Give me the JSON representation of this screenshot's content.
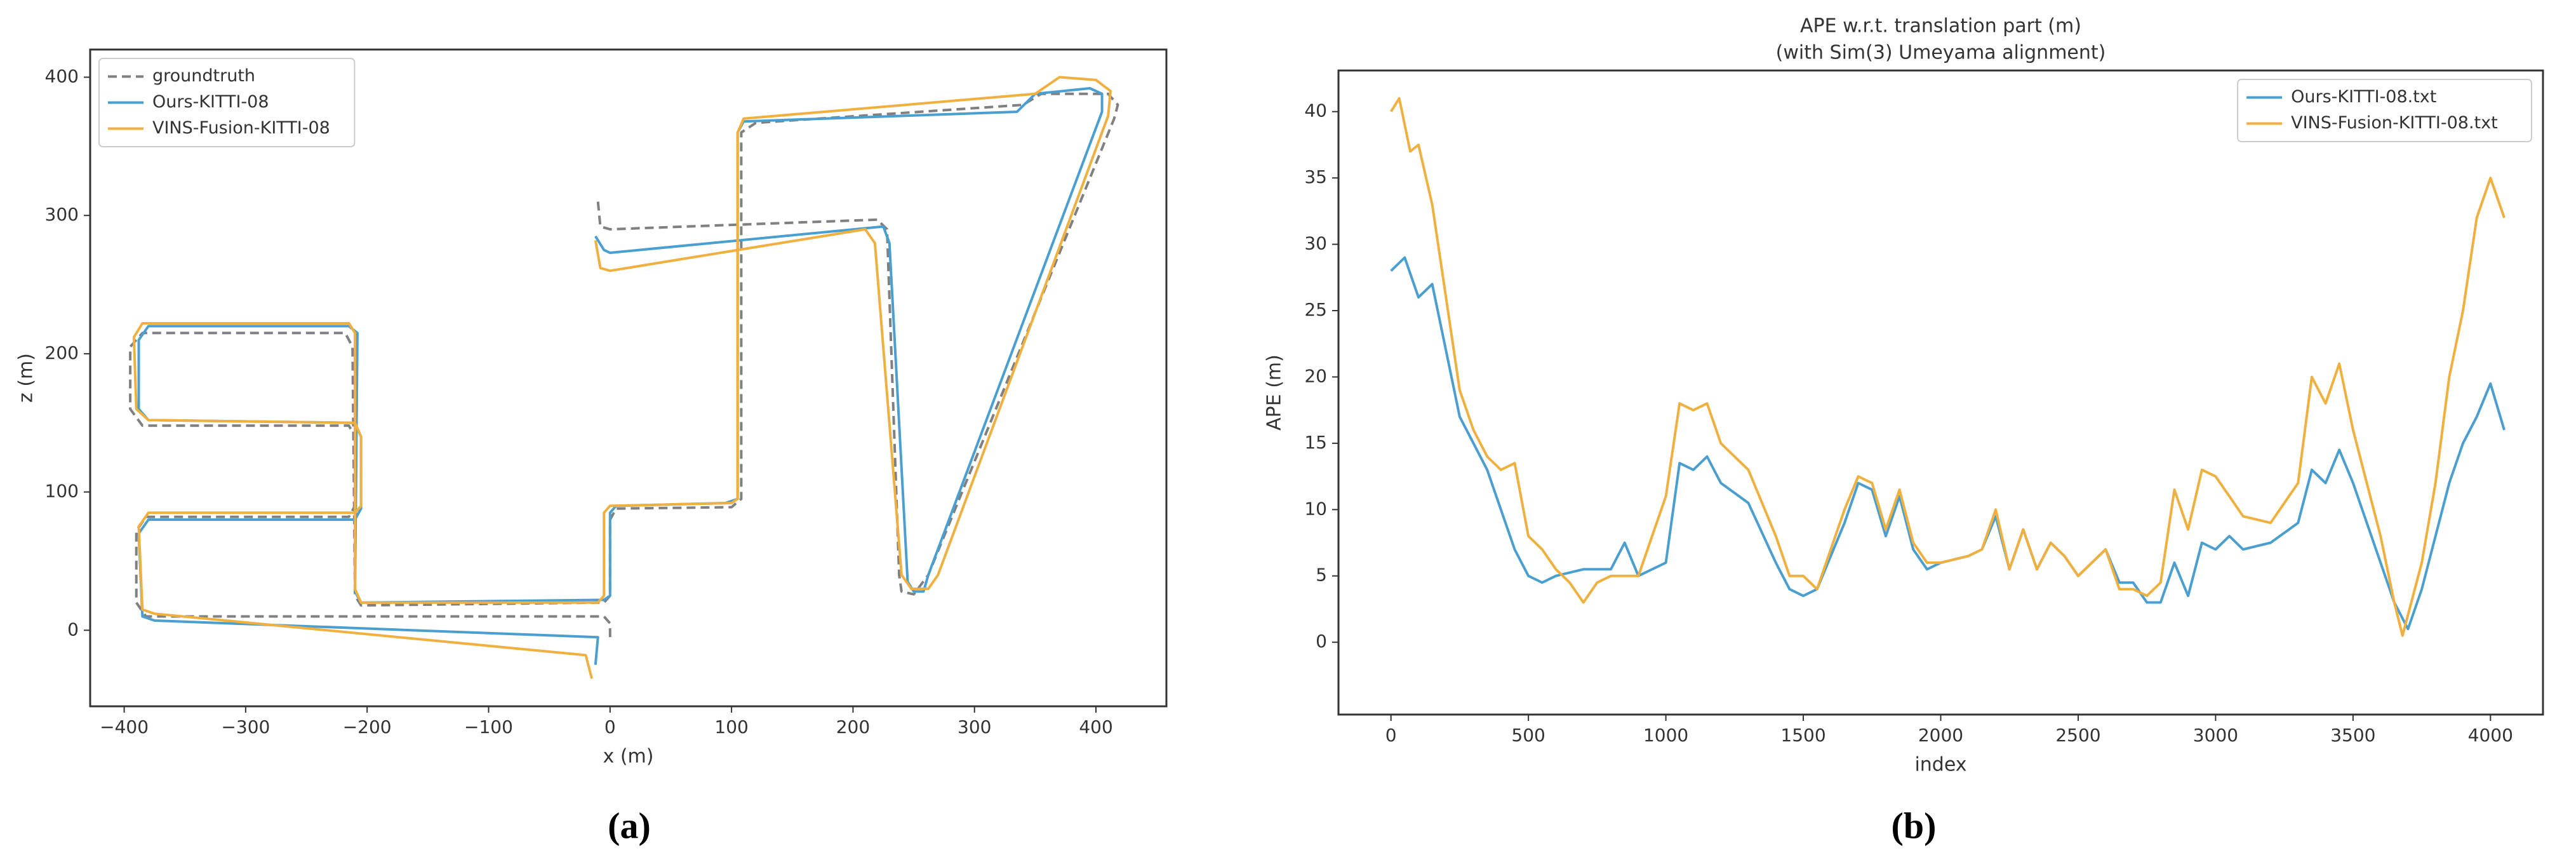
{
  "chart_data": [
    {
      "type": "line",
      "caption": "(a)",
      "xlabel": "x (m)",
      "ylabel": "z (m)",
      "xlim": [
        -428,
        458
      ],
      "ylim": [
        -55,
        420
      ],
      "xticks": [
        {
          "value": -400,
          "label": "−400"
        },
        {
          "value": -300,
          "label": "−300"
        },
        {
          "value": -200,
          "label": "−200"
        },
        {
          "value": -100,
          "label": "−100"
        },
        0,
        100,
        200,
        300,
        400
      ],
      "yticks": [
        0,
        100,
        200,
        300,
        400
      ],
      "legend": "upper left",
      "series": [
        {
          "name": "groundtruth",
          "color": "#808080",
          "linestyle": "dashed",
          "x": [
            -10,
            -8,
            0,
            220,
            228,
            238,
            240,
            250,
            262,
            415,
            418,
            410,
            355,
            340,
            120,
            108,
            108,
            100,
            5,
            0,
            0,
            -5,
            -205,
            -210,
            -212,
            -218,
            -385,
            -395,
            -395,
            -385,
            -215,
            -210,
            -210,
            -215,
            -382,
            -390,
            -390,
            -382,
            -5,
            0,
            0
          ],
          "values": [
            310,
            292,
            290,
            297,
            290,
            40,
            28,
            26,
            40,
            370,
            380,
            388,
            388,
            380,
            367,
            360,
            95,
            89,
            88,
            80,
            25,
            20,
            18,
            25,
            205,
            215,
            215,
            205,
            160,
            148,
            148,
            140,
            90,
            82,
            82,
            72,
            20,
            10,
            10,
            5,
            -5
          ]
        },
        {
          "name": "Ours-KITTI-08",
          "color": "#4a9fd0",
          "linestyle": "solid",
          "x": [
            -12,
            -5,
            0,
            225,
            230,
            245,
            250,
            258,
            262,
            405,
            405,
            395,
            350,
            335,
            110,
            105,
            105,
            95,
            5,
            0,
            0,
            -5,
            -205,
            -210,
            -208,
            -215,
            -380,
            -388,
            -388,
            -380,
            -210,
            -205,
            -205,
            -210,
            -380,
            -388,
            -385,
            -375,
            -10,
            -12
          ],
          "values": [
            285,
            275,
            273,
            292,
            280,
            35,
            28,
            28,
            40,
            375,
            388,
            392,
            388,
            375,
            368,
            360,
            95,
            92,
            90,
            85,
            25,
            22,
            20,
            28,
            215,
            220,
            220,
            210,
            160,
            152,
            150,
            140,
            88,
            80,
            80,
            70,
            10,
            7,
            -5,
            -25
          ]
        },
        {
          "name": "VINS-Fusion-KITTI-08",
          "color": "#f0b040",
          "linestyle": "solid",
          "x": [
            -12,
            -8,
            0,
            210,
            218,
            240,
            248,
            262,
            270,
            410,
            412,
            400,
            370,
            350,
            110,
            105,
            105,
            100,
            0,
            -5,
            -5,
            -10,
            -205,
            -210,
            -210,
            -215,
            -385,
            -392,
            -390,
            -380,
            -210,
            -205,
            -205,
            -210,
            -380,
            -388,
            -385,
            -375,
            -20,
            -15
          ],
          "values": [
            282,
            262,
            260,
            290,
            280,
            40,
            30,
            30,
            40,
            372,
            390,
            398,
            400,
            388,
            370,
            360,
            95,
            92,
            90,
            85,
            25,
            20,
            20,
            30,
            215,
            222,
            222,
            212,
            160,
            152,
            150,
            140,
            90,
            85,
            85,
            75,
            15,
            12,
            -18,
            -35
          ]
        }
      ]
    },
    {
      "type": "line",
      "caption": "(b)",
      "title": [
        "APE w.r.t. translation part (m)",
        "(with Sim(3) Umeyama alignment)"
      ],
      "xlabel": "index",
      "ylabel": "APE (m)",
      "xlim": [
        -191,
        4191
      ],
      "ylim": [
        -5.45,
        43.1
      ],
      "xticks": [
        0,
        500,
        1000,
        1500,
        2000,
        2500,
        3000,
        3500,
        4000
      ],
      "yticks": [
        0,
        5,
        10,
        15,
        20,
        25,
        30,
        35,
        40
      ],
      "legend": "upper right",
      "series": [
        {
          "name": "Ours-KITTI-08.txt",
          "color": "#4a9fd0",
          "linestyle": "solid",
          "x": [
            0,
            50,
            100,
            150,
            200,
            250,
            300,
            350,
            400,
            450,
            500,
            550,
            600,
            700,
            800,
            850,
            900,
            1000,
            1050,
            1100,
            1150,
            1200,
            1300,
            1400,
            1450,
            1500,
            1550,
            1600,
            1650,
            1700,
            1750,
            1800,
            1850,
            1900,
            1950,
            2000,
            2100,
            2150,
            2200,
            2250,
            2300,
            2350,
            2400,
            2450,
            2500,
            2600,
            2650,
            2700,
            2750,
            2800,
            2850,
            2900,
            2950,
            3000,
            3050,
            3100,
            3200,
            3300,
            3350,
            3400,
            3450,
            3500,
            3600,
            3650,
            3700,
            3750,
            3800,
            3850,
            3900,
            3950,
            4000,
            4050
          ],
          "values": [
            28,
            29,
            26,
            27,
            22,
            17,
            15,
            13,
            10,
            7,
            5,
            4.5,
            5,
            5.5,
            5.5,
            7.5,
            5,
            6,
            13.5,
            13,
            14,
            12,
            10.5,
            6,
            4,
            3.5,
            4,
            6.5,
            9,
            12,
            11.5,
            8,
            11,
            7,
            5.5,
            6,
            6.5,
            7,
            9.5,
            5.5,
            8.5,
            5.5,
            7.5,
            6.5,
            5,
            7,
            4.5,
            4.5,
            3,
            3,
            6,
            3.5,
            7.5,
            7,
            8,
            7,
            7.5,
            9,
            13,
            12,
            14.5,
            12,
            6,
            3,
            1,
            4,
            8,
            12,
            15,
            17,
            19.5,
            16
          ]
        },
        {
          "name": "VINS-Fusion-KITTI-08.txt",
          "color": "#f0b040",
          "linestyle": "solid",
          "x": [
            0,
            30,
            70,
            100,
            150,
            200,
            250,
            300,
            350,
            400,
            450,
            500,
            550,
            600,
            650,
            700,
            750,
            800,
            850,
            900,
            1000,
            1050,
            1100,
            1150,
            1200,
            1300,
            1400,
            1450,
            1500,
            1550,
            1600,
            1650,
            1700,
            1750,
            1800,
            1850,
            1900,
            1950,
            2000,
            2100,
            2150,
            2200,
            2250,
            2300,
            2350,
            2400,
            2450,
            2500,
            2600,
            2650,
            2700,
            2750,
            2800,
            2850,
            2900,
            2950,
            3000,
            3050,
            3100,
            3200,
            3300,
            3350,
            3400,
            3450,
            3500,
            3600,
            3650,
            3680,
            3750,
            3800,
            3850,
            3900,
            3950,
            4000,
            4050
          ],
          "values": [
            40,
            41,
            37,
            37.5,
            33,
            26,
            19,
            16,
            14,
            13,
            13.5,
            8,
            7,
            5.5,
            4.5,
            3,
            4.5,
            5,
            5,
            5,
            11,
            18,
            17.5,
            18,
            15,
            13,
            8,
            5,
            5,
            4,
            7,
            10,
            12.5,
            12,
            8.5,
            11.5,
            7.5,
            6,
            6,
            6.5,
            7,
            10,
            5.5,
            8.5,
            5.5,
            7.5,
            6.5,
            5,
            7,
            4,
            4,
            3.5,
            4.5,
            11.5,
            8.5,
            13,
            12.5,
            11,
            9.5,
            9,
            12,
            20,
            18,
            21,
            16,
            8,
            3,
            0.5,
            6,
            12,
            20,
            25,
            32,
            35,
            32
          ]
        }
      ]
    }
  ]
}
